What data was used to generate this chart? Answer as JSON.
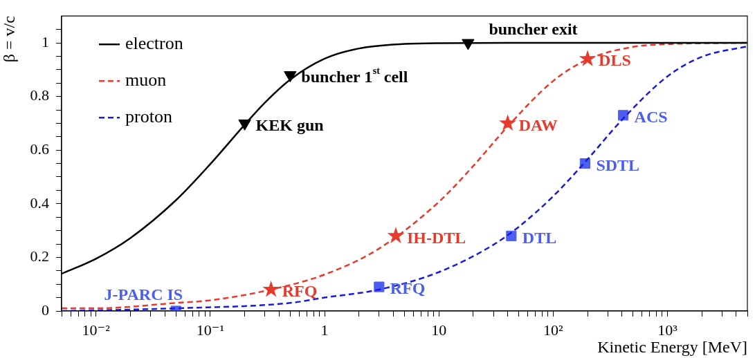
{
  "chart_data": {
    "type": "line",
    "xlabel": "Kinetic Energy [MeV]",
    "ylabel": "β = v/c",
    "log": "x",
    "grid": false,
    "legend": "top left",
    "xlim": [
      0.005,
      5000
    ],
    "ylim": [
      0,
      1.1
    ],
    "xticks": [
      {
        "value": 0.005,
        "label": null
      },
      {
        "value": 0.006,
        "label": null
      },
      {
        "value": 0.007,
        "label": null
      },
      {
        "value": 0.008,
        "label": null
      },
      {
        "value": 0.009,
        "label": null
      },
      {
        "value": 0.01,
        "label": "10⁻²"
      },
      {
        "value": 0.02,
        "label": null
      },
      {
        "value": 0.03,
        "label": null
      },
      {
        "value": 0.04,
        "label": null
      },
      {
        "value": 0.05,
        "label": null
      },
      {
        "value": 0.06,
        "label": null
      },
      {
        "value": 0.07,
        "label": null
      },
      {
        "value": 0.08,
        "label": null
      },
      {
        "value": 0.09,
        "label": null
      },
      {
        "value": 0.1,
        "label": "10⁻¹"
      },
      {
        "value": 0.2,
        "label": null
      },
      {
        "value": 0.3,
        "label": null
      },
      {
        "value": 0.4,
        "label": null
      },
      {
        "value": 0.5,
        "label": null
      },
      {
        "value": 0.6,
        "label": null
      },
      {
        "value": 0.7,
        "label": null
      },
      {
        "value": 0.8,
        "label": null
      },
      {
        "value": 0.9,
        "label": null
      },
      1,
      {
        "value": 2,
        "label": null
      },
      {
        "value": 3,
        "label": null
      },
      {
        "value": 4,
        "label": null
      },
      {
        "value": 5,
        "label": null
      },
      {
        "value": 6,
        "label": null
      },
      {
        "value": 7,
        "label": null
      },
      {
        "value": 8,
        "label": null
      },
      {
        "value": 9,
        "label": null
      },
      10,
      {
        "value": 20,
        "label": null
      },
      {
        "value": 30,
        "label": null
      },
      {
        "value": 40,
        "label": null
      },
      {
        "value": 50,
        "label": null
      },
      {
        "value": 60,
        "label": null
      },
      {
        "value": 70,
        "label": null
      },
      {
        "value": 80,
        "label": null
      },
      {
        "value": 90,
        "label": null
      },
      {
        "value": 100,
        "label": "10²"
      },
      {
        "value": 200,
        "label": null
      },
      {
        "value": 300,
        "label": null
      },
      {
        "value": 400,
        "label": null
      },
      {
        "value": 500,
        "label": null
      },
      {
        "value": 600,
        "label": null
      },
      {
        "value": 700,
        "label": null
      },
      {
        "value": 800,
        "label": null
      },
      {
        "value": 900,
        "label": null
      },
      {
        "value": 1000,
        "label": "10³"
      },
      {
        "value": 2000,
        "label": null
      },
      {
        "value": 3000,
        "label": null
      },
      {
        "value": 4000,
        "label": null
      },
      {
        "value": 5000,
        "label": null
      }
    ],
    "yticks": [
      0,
      {
        "value": 0.05,
        "label": null
      },
      {
        "value": 0.1,
        "label": null
      },
      {
        "value": 0.15,
        "label": null
      },
      0.2,
      {
        "value": 0.25,
        "label": null
      },
      {
        "value": 0.3,
        "label": null
      },
      {
        "value": 0.35,
        "label": null
      },
      0.4,
      {
        "value": 0.45,
        "label": null
      },
      {
        "value": 0.5,
        "label": null
      },
      {
        "value": 0.55,
        "label": null
      },
      0.6,
      {
        "value": 0.65,
        "label": null
      },
      {
        "value": 0.7,
        "label": null
      },
      {
        "value": 0.75,
        "label": null
      },
      0.8,
      {
        "value": 0.85,
        "label": null
      },
      {
        "value": 0.9,
        "label": null
      },
      {
        "value": 0.95,
        "label": null
      },
      1,
      {
        "value": 1.05,
        "label": null
      }
    ],
    "series": [
      {
        "name": "electron",
        "color": "#000000",
        "line_style": "solid",
        "marker": "none",
        "x": [
          0.005,
          0.01,
          0.02,
          0.05,
          0.1,
          0.2,
          0.3,
          0.5,
          1,
          2,
          5,
          10,
          100,
          5000
        ],
        "values": [
          0.139,
          0.195,
          0.272,
          0.413,
          0.548,
          0.695,
          0.777,
          0.863,
          0.941,
          0.979,
          0.996,
          0.999,
          1,
          1
        ]
      },
      {
        "name": "muon",
        "color": "#e53a2c",
        "line_style": "dashed",
        "marker": "none",
        "x": [
          0.005,
          0.01,
          0.05,
          0.1,
          0.3,
          1,
          3,
          10,
          20,
          40,
          100,
          200,
          500,
          1000,
          5000
        ],
        "values": [
          0.01,
          0.01,
          0.03,
          0.04,
          0.075,
          0.136,
          0.233,
          0.407,
          0.541,
          0.688,
          0.858,
          0.938,
          0.985,
          0.995,
          1
        ]
      },
      {
        "name": "proton",
        "color": "#1a1adc",
        "line_style": "dashed",
        "marker": "none",
        "x": [
          0.005,
          0.05,
          0.5,
          1,
          3,
          10,
          30,
          50,
          100,
          200,
          400,
          1000,
          2000,
          5000
        ],
        "values": [
          0,
          0.01,
          0.03,
          0.05,
          0.08,
          0.145,
          0.247,
          0.314,
          0.428,
          0.566,
          0.713,
          0.875,
          0.948,
          0.987
        ]
      },
      {
        "type": "scatter",
        "color": "#000000",
        "marker": "triangle",
        "x": [
          0.2,
          0.5,
          18
        ],
        "values": [
          0.7,
          0.88,
          1
        ]
      },
      {
        "type": "scatter",
        "color": "#e53a2c",
        "marker": "star",
        "x": [
          0.34,
          4.2,
          40,
          200
        ],
        "values": [
          0.08,
          0.28,
          0.7,
          0.94
        ]
      },
      {
        "type": "scatter",
        "color": "#4c5ef0",
        "marker": "square",
        "x": [
          0.05,
          3,
          43,
          190,
          410
        ],
        "values": [
          0,
          0.09,
          0.28,
          0.55,
          0.73
        ]
      }
    ],
    "annotations": [
      {
        "text": "KEK gun",
        "x": 0.2,
        "y": 0.7
      },
      {
        "text": "buncher 1$^{st}$ cell",
        "x": 0.5,
        "y": 0.88
      },
      {
        "text": "buncher exit",
        "x": 18,
        "y": 1
      },
      {
        "text": "RFQ",
        "x": 0.34,
        "y": 0.08
      },
      {
        "text": "IH-DTL",
        "x": 4.2,
        "y": 0.28
      },
      {
        "text": "DAW",
        "x": 40,
        "y": 0.7
      },
      {
        "text": "DLS",
        "x": 200,
        "y": 0.94
      },
      {
        "text": "J-PARC IS",
        "x": 0.05,
        "y": 0
      },
      {
        "text": "RFQ",
        "x": 3,
        "y": 0.09
      },
      {
        "text": "DTL",
        "x": 43,
        "y": 0.28
      },
      {
        "text": "SDTL",
        "x": 190,
        "y": 0.55
      },
      {
        "text": "ACS",
        "x": 410,
        "y": 0.73
      }
    ]
  }
}
